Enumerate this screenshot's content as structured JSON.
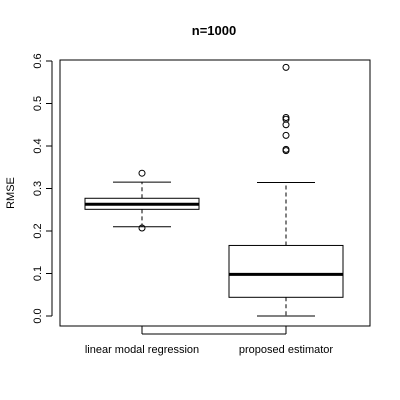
{
  "chart_data": {
    "type": "boxplot",
    "title": "n=1000",
    "xlabel": "",
    "ylabel": "RMSE",
    "ylim": [
      -0.01,
      0.61
    ],
    "yticks": [
      "0.0",
      "0.1",
      "0.2",
      "0.3",
      "0.4",
      "0.5",
      "0.6"
    ],
    "grid": false,
    "categories": [
      "linear modal regression",
      "proposed estimator"
    ],
    "boxes": [
      {
        "category": "linear modal regression",
        "whisker_low": 0.21,
        "q1": 0.251,
        "median": 0.263,
        "q3": 0.277,
        "whisker_high": 0.315,
        "outliers": [
          0.336,
          0.207
        ]
      },
      {
        "category": "proposed estimator",
        "whisker_low": 0.0,
        "q1": 0.044,
        "median": 0.098,
        "q3": 0.166,
        "whisker_high": 0.314,
        "outliers": [
          0.585,
          0.467,
          0.463,
          0.45,
          0.425,
          0.392,
          0.389
        ]
      }
    ]
  }
}
